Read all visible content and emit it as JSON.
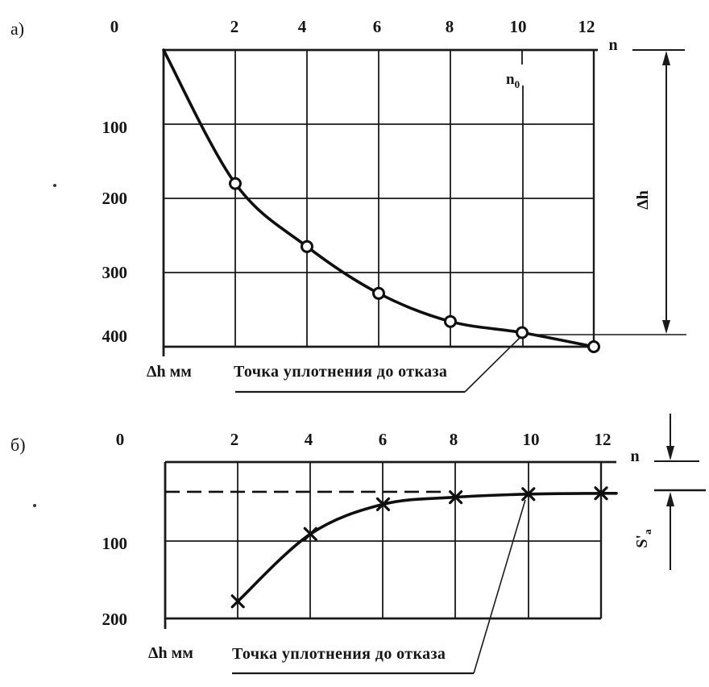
{
  "figure": {
    "panels": [
      {
        "id": "a",
        "label": "а)",
        "x_ticks": [
          "0",
          "2",
          "4",
          "6",
          "8",
          "10",
          "12"
        ],
        "x_axis_label": "n",
        "y_ticks": [
          "100",
          "200",
          "300",
          "400"
        ],
        "y_axis_label": "Δh мм",
        "marker_line_label": {
          "main": "n",
          "sub": "0"
        },
        "dim_label": {
          "main": "Δh",
          "sub": ""
        },
        "annotation": "Точка уплотнения до отказа"
      },
      {
        "id": "b",
        "label": "б)",
        "x_ticks": [
          "0",
          "2",
          "4",
          "6",
          "8",
          "10",
          "12"
        ],
        "x_axis_label": "n",
        "y_ticks": [
          "100",
          "200"
        ],
        "y_axis_label": "Δh мм",
        "dim_label": {
          "main": "S'",
          "sub": "a"
        },
        "annotation": "Точка уплотнения до отказа"
      }
    ]
  },
  "chart_data": [
    {
      "panel": "а",
      "type": "line",
      "marker": "circle",
      "title": "Осадка Δh от числа проходов n (кривая уплотнения)",
      "xlabel": "n",
      "ylabel": "Δh мм",
      "xlim": [
        0,
        12
      ],
      "ylim": [
        0,
        400
      ],
      "y_axis_inverted": true,
      "grid": true,
      "curve_start": {
        "x": 0,
        "y": 0
      },
      "x": [
        2,
        4,
        6,
        8,
        10,
        12
      ],
      "y": [
        180,
        265,
        328,
        366,
        381,
        400
      ],
      "refusal_point": {
        "x": 10,
        "y": 381,
        "label": "Точка уплотнения до отказа"
      },
      "n0_line_x": 10,
      "dimension_label": "Δh"
    },
    {
      "panel": "б",
      "type": "line",
      "marker": "x",
      "title": "Приращение осадки от числа проходов n",
      "xlabel": "n",
      "ylabel": "Δh мм",
      "xlim": [
        0,
        12
      ],
      "ylim": [
        0,
        200
      ],
      "y_axis_inverted": true,
      "grid": true,
      "x": [
        2,
        4,
        6,
        8,
        10,
        12
      ],
      "y": [
        178,
        92,
        54,
        45,
        41,
        40
      ],
      "asymptote_y": 38,
      "refusal_point": {
        "x": 10,
        "y": 41,
        "label": "Точка уплотнения до отказа"
      },
      "dimension_label": "S'a"
    }
  ]
}
